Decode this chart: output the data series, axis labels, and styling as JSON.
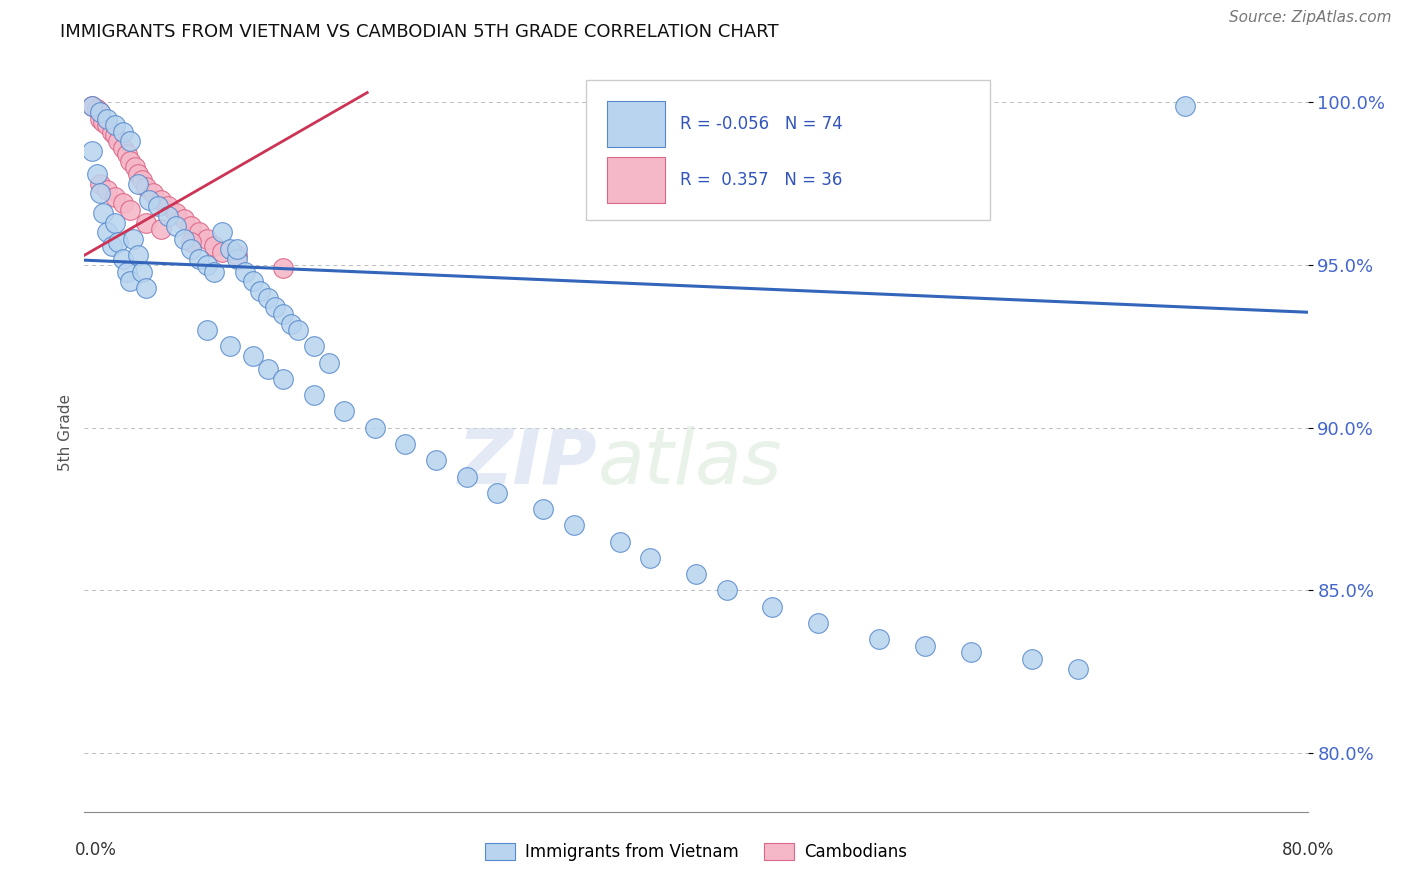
{
  "title": "IMMIGRANTS FROM VIETNAM VS CAMBODIAN 5TH GRADE CORRELATION CHART",
  "source": "Source: ZipAtlas.com",
  "ylabel": "5th Grade",
  "xlim": [
    0.0,
    0.8
  ],
  "ylim": [
    0.782,
    1.015
  ],
  "y_ticks": [
    0.8,
    0.85,
    0.9,
    0.95,
    1.0
  ],
  "y_tick_labels": [
    "80.0%",
    "85.0%",
    "90.0%",
    "95.0%",
    "100.0%"
  ],
  "blue_R": -0.056,
  "blue_N": 74,
  "pink_R": 0.357,
  "pink_N": 36,
  "blue_color": "#b8d4ee",
  "pink_color": "#f4b8c8",
  "blue_edge_color": "#5588cc",
  "pink_edge_color": "#dd6688",
  "blue_line_color": "#3366bb",
  "pink_line_color": "#cc3355",
  "legend_blue_label": "Immigrants from Vietnam",
  "legend_pink_label": "Cambodians",
  "watermark_zip": "ZIP",
  "watermark_atlas": "atlas",
  "blue_trend_x": [
    0.0,
    0.8
  ],
  "blue_trend_y": [
    0.9515,
    0.9355
  ],
  "pink_trend_x": [
    0.0,
    0.185
  ],
  "pink_trend_y": [
    0.953,
    1.003
  ]
}
